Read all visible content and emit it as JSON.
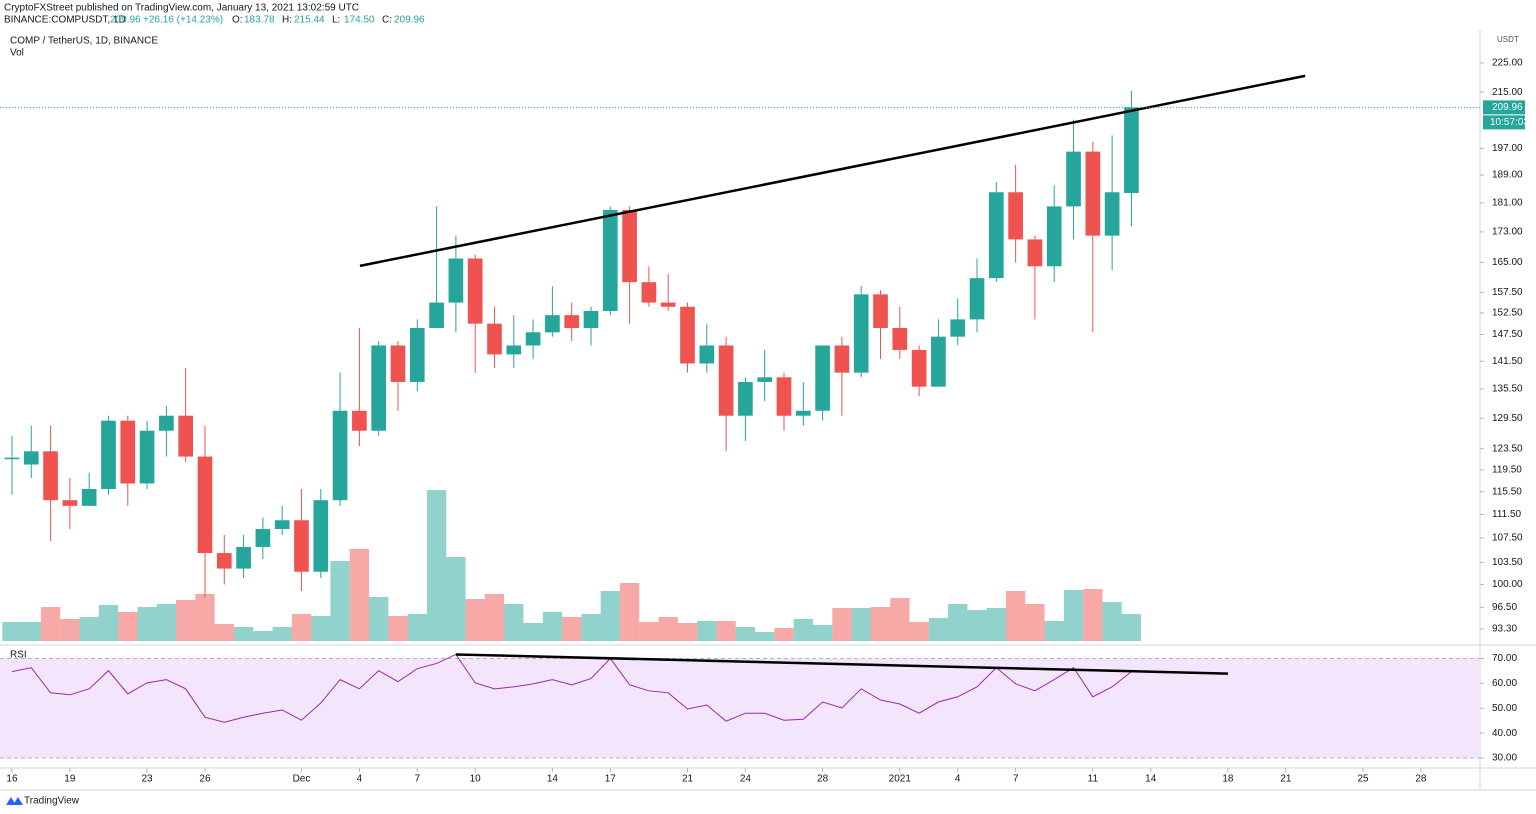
{
  "header": {
    "publisher": "CryptoFXStreet published on TradingView.com, January 13, 2021 13:02:59 UTC",
    "symbol": "BINANCE:COMPUSDT, 1D",
    "price": "209.96",
    "change": "+26.16 (+14.23%)",
    "ohlc": [
      {
        "label": "O:",
        "value": "183.78"
      },
      {
        "label": "H:",
        "value": "215.44"
      },
      {
        "label": "L:",
        "value": "174.50"
      },
      {
        "label": "C:",
        "value": "209.96"
      }
    ]
  },
  "logo": "TradingView",
  "chart_data": {
    "type": "candlestick",
    "title": "COMP / TetherUS, 1D, BINANCE",
    "currency": "USDT",
    "log": true,
    "up_color": "#26a69a",
    "down_color": "#ef5350",
    "x": [
      0,
      1,
      2,
      3,
      4,
      5,
      6,
      7,
      8,
      9,
      10,
      11,
      12,
      13,
      14,
      15,
      16,
      17,
      18,
      19,
      20,
      21,
      22,
      23,
      24,
      25,
      26,
      27,
      28,
      29,
      30,
      31,
      32,
      33,
      34,
      35,
      36,
      37,
      38,
      39,
      40,
      41,
      42,
      43,
      44,
      45,
      46,
      47,
      48,
      49,
      50,
      51,
      52,
      53,
      54,
      55,
      56,
      57,
      58
    ],
    "open": [
      121.5,
      120.5,
      123,
      114,
      113,
      116,
      129,
      117,
      127,
      130,
      122,
      105,
      102.5,
      106,
      109,
      110.5,
      102,
      114,
      131,
      127,
      145,
      137,
      149,
      155,
      166,
      150,
      143,
      145,
      148,
      152,
      149,
      153,
      179,
      160,
      155,
      154,
      141,
      145,
      130,
      137,
      138,
      130,
      131,
      145,
      139,
      157,
      149,
      144,
      136,
      147,
      151,
      161,
      184,
      171,
      164,
      180,
      196,
      172,
      183.78
    ],
    "high": [
      126,
      128,
      128,
      118,
      119,
      130,
      130,
      129,
      132,
      140,
      128,
      108,
      108,
      111,
      113,
      116,
      116,
      139,
      149,
      146,
      146,
      151,
      180,
      172,
      167,
      154,
      152,
      151,
      159,
      155,
      154,
      180,
      180,
      164,
      162,
      155,
      150,
      147,
      138,
      144,
      139,
      137,
      145,
      147,
      159,
      158,
      154,
      145,
      151,
      156,
      166,
      187,
      192,
      172,
      186,
      206,
      199,
      201,
      215.44
    ],
    "low": [
      115,
      118,
      107,
      109,
      113,
      115,
      113,
      116,
      122,
      121,
      98,
      100,
      101,
      104,
      108,
      99,
      101,
      113,
      124,
      126,
      131,
      135,
      149,
      148,
      139,
      140,
      140,
      142,
      147,
      146,
      145,
      152,
      150,
      154,
      153,
      139,
      139,
      123,
      125,
      133,
      127,
      128,
      129,
      130,
      138,
      142,
      142,
      134,
      136,
      145,
      148,
      160,
      165,
      151,
      160,
      171,
      148,
      163,
      174.5
    ],
    "close": [
      121.8,
      123,
      114,
      113,
      116,
      129,
      117,
      127,
      130,
      122,
      105,
      102.5,
      106,
      109,
      110.5,
      102,
      114,
      131,
      127,
      145,
      137,
      149,
      155,
      166,
      150,
      143,
      145,
      148,
      152,
      149,
      153,
      179,
      160,
      155,
      154,
      141,
      145,
      130,
      137,
      138,
      130,
      131,
      145,
      139,
      157,
      149,
      144,
      136,
      147,
      151,
      161,
      184,
      171,
      164,
      180,
      196,
      172,
      184,
      209.96
    ],
    "ylim": [
      91.3,
      236.8
    ],
    "yticks": [
      {
        "value": 93.3,
        "label": "93.30"
      },
      {
        "value": 96.5,
        "label": "96.50"
      },
      {
        "value": 100,
        "label": "100.00"
      },
      {
        "value": 103.5,
        "label": "103.50"
      },
      {
        "value": 107.5,
        "label": "107.50"
      },
      {
        "value": 111.5,
        "label": "111.50"
      },
      {
        "value": 115.5,
        "label": "115.50"
      },
      {
        "value": 119.5,
        "label": "119.50"
      },
      {
        "value": 123.5,
        "label": "123.50"
      },
      {
        "value": 129.5,
        "label": "129.50"
      },
      {
        "value": 135.5,
        "label": "135.50"
      },
      {
        "value": 141.5,
        "label": "141.50"
      },
      {
        "value": 147.5,
        "label": "147.50"
      },
      {
        "value": 152.5,
        "label": "152.50"
      },
      {
        "value": 157.5,
        "label": "157.50"
      },
      {
        "value": 165,
        "label": "165.00"
      },
      {
        "value": 173,
        "label": "173.00"
      },
      {
        "value": 181,
        "label": "181.00"
      },
      {
        "value": 189,
        "label": "189.00"
      },
      {
        "value": 197,
        "label": "197.00"
      },
      {
        "value": 215,
        "label": "215.00"
      },
      {
        "value": 225,
        "label": "225.00"
      }
    ],
    "xlim": [
      -0.62,
      76.06
    ],
    "xticks": [
      {
        "value": 0,
        "label": "16"
      },
      {
        "value": 3,
        "label": "19"
      },
      {
        "value": 7,
        "label": "23"
      },
      {
        "value": 10,
        "label": "26"
      },
      {
        "value": 15,
        "label": "Dec"
      },
      {
        "value": 18,
        "label": "4"
      },
      {
        "value": 21,
        "label": "7"
      },
      {
        "value": 24,
        "label": "10"
      },
      {
        "value": 28,
        "label": "14"
      },
      {
        "value": 31,
        "label": "17"
      },
      {
        "value": 35,
        "label": "21"
      },
      {
        "value": 38,
        "label": "24"
      },
      {
        "value": 42,
        "label": "28"
      },
      {
        "value": 46,
        "label": "2021"
      },
      {
        "value": 49,
        "label": "4"
      },
      {
        "value": 52,
        "label": "7"
      },
      {
        "value": 56,
        "label": "11"
      },
      {
        "value": 59,
        "label": "14"
      },
      {
        "value": 63,
        "label": "18"
      },
      {
        "value": 66,
        "label": "21"
      },
      {
        "value": 70,
        "label": "25"
      },
      {
        "value": 73,
        "label": "28"
      }
    ],
    "last_price": 209.96,
    "countdown": "10:57:03",
    "trendline": {
      "x": [
        18.03,
        67.0
      ],
      "y": [
        164.1,
        220.5
      ]
    },
    "volume": {
      "name": "Vol",
      "ylim": [
        0,
        151
      ],
      "values": [
        19,
        19,
        34,
        22,
        24,
        36,
        29,
        34,
        37,
        41,
        47,
        17,
        14,
        10,
        14,
        27,
        25,
        80,
        92,
        44,
        25,
        27,
        151,
        84,
        42,
        47,
        37,
        18,
        29,
        24,
        27,
        50,
        58,
        19,
        24,
        18,
        20,
        20,
        14,
        9,
        13,
        22,
        16,
        33,
        33,
        34,
        43,
        19,
        23,
        37,
        31,
        33,
        50,
        37,
        20,
        51,
        52,
        39,
        27
      ]
    },
    "rsi": {
      "name": "RSI",
      "color": "#9c27b0",
      "band_color": "#f3e5fc",
      "ylim": [
        26,
        75
      ],
      "yticks": [
        {
          "value": 30,
          "label": "30.00"
        },
        {
          "value": 40,
          "label": "40.00"
        },
        {
          "value": 50,
          "label": "50.00"
        },
        {
          "value": 60,
          "label": "60.00"
        },
        {
          "value": 70,
          "label": "70.00"
        }
      ],
      "values": [
        64.7,
        66.3,
        56.2,
        55.4,
        57.8,
        65.1,
        55.8,
        60.2,
        61.5,
        57.8,
        46.4,
        44.4,
        46.4,
        48.0,
        49.3,
        45.2,
        52.1,
        61.5,
        57.8,
        65.1,
        60.7,
        65.9,
        68.0,
        71.6,
        60.2,
        57.8,
        58.6,
        59.8,
        61.5,
        59.4,
        61.9,
        70.0,
        59.4,
        57.0,
        56.2,
        49.7,
        51.3,
        44.8,
        48.0,
        48.0,
        45.2,
        45.6,
        52.5,
        50.1,
        57.8,
        53.3,
        51.7,
        48.0,
        52.5,
        54.6,
        58.6,
        66.3,
        59.8,
        57.0,
        61.5,
        66.3,
        54.6,
        58.6,
        64.7
      ],
      "trendline": {
        "x": [
          23.0,
          63.0
        ],
        "y": [
          71.6,
          63.9
        ]
      }
    }
  }
}
